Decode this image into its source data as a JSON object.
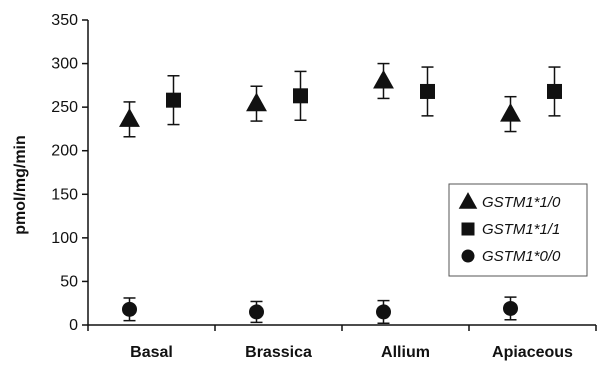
{
  "chart_data": {
    "type": "scatter",
    "title": "",
    "xlabel": "",
    "ylabel": "pmol/mg/min",
    "categories": [
      "Basal",
      "Brassica",
      "Allium",
      "Apiaceous"
    ],
    "ylim": [
      0,
      350
    ],
    "yticks": [
      0,
      50,
      100,
      150,
      200,
      250,
      300,
      350
    ],
    "grid": false,
    "legend_position": "right",
    "series": [
      {
        "name": "GSTM1*1/0",
        "marker": "triangle",
        "color": "#111111",
        "values": [
          236,
          254,
          280,
          242
        ],
        "errors": [
          20,
          20,
          20,
          20
        ]
      },
      {
        "name": "GSTM1*1/1",
        "marker": "square",
        "color": "#111111",
        "values": [
          258,
          263,
          268,
          268
        ],
        "errors": [
          28,
          28,
          28,
          28
        ]
      },
      {
        "name": "GSTM1*0/0",
        "marker": "circle",
        "color": "#111111",
        "values": [
          18,
          15,
          15,
          19
        ],
        "errors": [
          13,
          12,
          13,
          13
        ]
      }
    ]
  }
}
